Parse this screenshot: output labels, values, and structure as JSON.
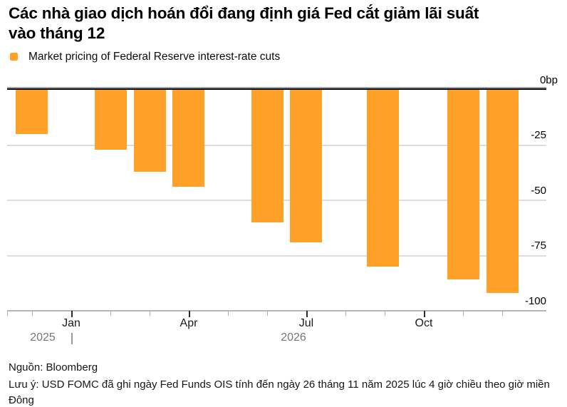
{
  "title": {
    "line1": "Các nhà giao dịch hoán đổi đang định giá Fed cắt giảm lãi suất",
    "line2": "vào tháng 12"
  },
  "legend": {
    "label": "Market pricing of Federal Reserve interest-rate cuts"
  },
  "colors": {
    "bar": "#FFA028",
    "grid": "#DDDDDD",
    "baseline": "#B5B5B5",
    "zero_line": "#0A0A0A",
    "zero_line_shadow": "#A6A6A6",
    "year_text": "#757575",
    "axis_text": "#000000"
  },
  "chart_data": {
    "type": "bar",
    "title": "Các nhà giao dịch hoán đổi đang định giá Fed cắt giảm lãi suất vào tháng 12",
    "legend_entries": [
      "Market pricing of Federal Reserve interest-rate cuts"
    ],
    "unit": "bp",
    "ylim": [
      -100,
      0
    ],
    "grid": "horizontal",
    "legend_position": "top-left",
    "y_tick_labels": [
      "0bp",
      "-25",
      "-50",
      "-75",
      "-100"
    ],
    "x_tick_labels": [
      "Jan",
      "Apr",
      "Jul",
      "Oct"
    ],
    "x_year_labels": [
      "2025",
      "2026"
    ],
    "x_months": [
      "Dec 2025",
      "Feb 2026",
      "Mar 2026",
      "Apr 2026",
      "Jun 2026",
      "Jul 2026",
      "Sep 2026",
      "Nov 2026",
      "Dec 2026"
    ],
    "series": [
      {
        "name": "Market pricing of Federal Reserve interest-rate cuts",
        "values": [
          -20,
          -27,
          -37,
          -44,
          -60,
          -69,
          -80,
          -86,
          -92
        ]
      }
    ]
  },
  "footer": {
    "source": "Nguồn: Bloomberg",
    "note": "Lưu ý: USD FOMC đã ghi ngày Fed Funds OIS tính đến ngày 26 tháng 11 năm 2025 lúc 4 giờ chiều theo giờ miền Đông"
  }
}
